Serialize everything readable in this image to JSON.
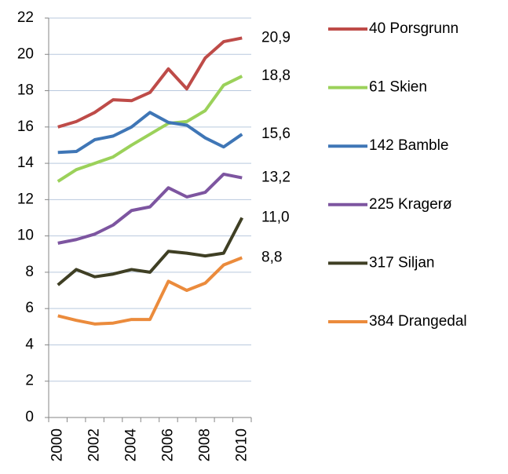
{
  "chart_data": {
    "type": "line",
    "categories": [
      "2000",
      null,
      "2002",
      null,
      "2004",
      null,
      "2006",
      null,
      "2008",
      null,
      "2010"
    ],
    "ylim": [
      0,
      22
    ],
    "yticks": [
      0,
      2,
      4,
      6,
      8,
      10,
      12,
      14,
      16,
      18,
      20,
      22
    ],
    "grid": true,
    "legend": "right",
    "series": [
      {
        "name": "40 Porsgrunn",
        "color": "#be4b48",
        "label_color": "#8c3631",
        "values": [
          16.0,
          16.3,
          16.8,
          17.5,
          17.45,
          17.9,
          19.2,
          18.1,
          19.8,
          20.7,
          20.9
        ],
        "value_labels": [
          null,
          null,
          null,
          null,
          null,
          null,
          null,
          null,
          null,
          null,
          "20,9"
        ]
      },
      {
        "name": "61 Skien",
        "color": "#9bd15a",
        "label_color": "#5f7a2b",
        "values": [
          13.0,
          13.65,
          14.0,
          14.35,
          15.0,
          15.6,
          16.2,
          16.3,
          16.9,
          18.3,
          18.8
        ],
        "value_labels": [
          null,
          null,
          null,
          null,
          null,
          null,
          null,
          null,
          null,
          null,
          "18,8"
        ]
      },
      {
        "name": "142 Bamble",
        "color": "#3f76b6",
        "label_color": "#2b5889",
        "values": [
          14.6,
          14.65,
          15.3,
          15.5,
          16.0,
          16.8,
          16.25,
          16.1,
          15.4,
          14.9,
          15.6
        ],
        "value_labels": [
          null,
          null,
          null,
          null,
          null,
          null,
          null,
          null,
          null,
          null,
          "15,6"
        ]
      },
      {
        "name": "225 Kragerø",
        "color": "#7d55a0",
        "label_color": "#4e3b6c",
        "values": [
          9.6,
          9.8,
          10.1,
          10.6,
          11.4,
          11.6,
          12.65,
          12.15,
          12.4,
          13.4,
          13.2
        ],
        "value_labels": [
          null,
          null,
          null,
          null,
          null,
          null,
          null,
          null,
          null,
          null,
          "13,2"
        ]
      },
      {
        "name": "317 Siljan",
        "color": "#3f3f24",
        "label_color": "#5d5b2b",
        "values": [
          7.3,
          8.15,
          7.75,
          7.9,
          8.15,
          8.0,
          9.15,
          9.05,
          8.9,
          9.05,
          11.0
        ],
        "value_labels": [
          null,
          null,
          null,
          null,
          null,
          null,
          null,
          null,
          null,
          null,
          "11,0"
        ]
      },
      {
        "name": "384 Drangedal",
        "color": "#eb8b3c",
        "label_color": "#b8621d",
        "values": [
          5.6,
          5.35,
          5.15,
          5.2,
          5.4,
          5.4,
          7.5,
          7.0,
          7.4,
          8.4,
          8.8
        ],
        "value_labels": [
          null,
          null,
          null,
          null,
          null,
          null,
          null,
          null,
          null,
          null,
          "8,8"
        ]
      }
    ]
  }
}
